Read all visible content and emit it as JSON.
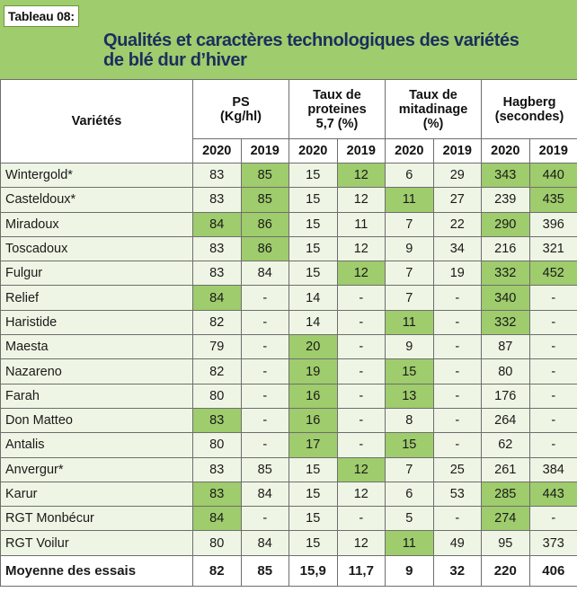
{
  "tag": "Tableau 08:",
  "title_line1": "Qualités et caractères technologiques des variétés",
  "title_line2": "de blé dur d’hiver",
  "headers": {
    "varietes": "Variétés",
    "ps": "PS\n(Kg/hl)",
    "proteines": "Taux de\nproteines\n5,7 (%)",
    "mitadinage": "Taux de\nmitadinage\n(%)",
    "hagberg": "Hagberg\n(secondes)",
    "years": [
      "2020",
      "2019",
      "2020",
      "2019",
      "2020",
      "2019",
      "2020",
      "2019"
    ]
  },
  "rows": [
    {
      "name": "Wintergold*",
      "values": [
        "83",
        "85",
        "15",
        "12",
        "6",
        "29",
        "343",
        "440"
      ],
      "highlight": [
        false,
        true,
        false,
        true,
        false,
        false,
        true,
        true
      ]
    },
    {
      "name": "Casteldoux*",
      "values": [
        "83",
        "85",
        "15",
        "12",
        "11",
        "27",
        "239",
        "435"
      ],
      "highlight": [
        false,
        true,
        false,
        false,
        true,
        false,
        false,
        true
      ]
    },
    {
      "name": "Miradoux",
      "values": [
        "84",
        "86",
        "15",
        "11",
        "7",
        "22",
        "290",
        "396"
      ],
      "highlight": [
        true,
        true,
        false,
        false,
        false,
        false,
        true,
        false
      ]
    },
    {
      "name": "Toscadoux",
      "values": [
        "83",
        "86",
        "15",
        "12",
        "9",
        "34",
        "216",
        "321"
      ],
      "highlight": [
        false,
        true,
        false,
        false,
        false,
        false,
        false,
        false
      ]
    },
    {
      "name": "Fulgur",
      "values": [
        "83",
        "84",
        "15",
        "12",
        "7",
        "19",
        "332",
        "452"
      ],
      "highlight": [
        false,
        false,
        false,
        true,
        false,
        false,
        true,
        true
      ]
    },
    {
      "name": "Relief",
      "values": [
        "84",
        "-",
        "14",
        "-",
        "7",
        "-",
        "340",
        "-"
      ],
      "highlight": [
        true,
        false,
        false,
        false,
        false,
        false,
        true,
        false
      ]
    },
    {
      "name": "Haristide",
      "values": [
        "82",
        "-",
        "14",
        "-",
        "11",
        "-",
        "332",
        "-"
      ],
      "highlight": [
        false,
        false,
        false,
        false,
        true,
        false,
        true,
        false
      ]
    },
    {
      "name": "Maesta",
      "values": [
        "79",
        "-",
        "20",
        "-",
        "9",
        "-",
        "87",
        "-"
      ],
      "highlight": [
        false,
        false,
        true,
        false,
        false,
        false,
        false,
        false
      ]
    },
    {
      "name": "Nazareno",
      "values": [
        "82",
        "-",
        "19",
        "-",
        "15",
        "-",
        "80",
        "-"
      ],
      "highlight": [
        false,
        false,
        true,
        false,
        true,
        false,
        false,
        false
      ]
    },
    {
      "name": "Farah",
      "values": [
        "80",
        "-",
        "16",
        "-",
        "13",
        "-",
        "176",
        "-"
      ],
      "highlight": [
        false,
        false,
        true,
        false,
        true,
        false,
        false,
        false
      ]
    },
    {
      "name": "Don Matteo",
      "values": [
        "83",
        "-",
        "16",
        "-",
        "8",
        "-",
        "264",
        "-"
      ],
      "highlight": [
        true,
        false,
        true,
        false,
        false,
        false,
        false,
        false
      ]
    },
    {
      "name": "Antalis",
      "values": [
        "80",
        "-",
        "17",
        "-",
        "15",
        "-",
        "62",
        "-"
      ],
      "highlight": [
        false,
        false,
        true,
        false,
        true,
        false,
        false,
        false
      ]
    },
    {
      "name": "Anvergur*",
      "values": [
        "83",
        "85",
        "15",
        "12",
        "7",
        "25",
        "261",
        "384"
      ],
      "highlight": [
        false,
        false,
        false,
        true,
        false,
        false,
        false,
        false
      ]
    },
    {
      "name": "Karur",
      "values": [
        "83",
        "84",
        "15",
        "12",
        "6",
        "53",
        "285",
        "443"
      ],
      "highlight": [
        true,
        false,
        false,
        false,
        false,
        false,
        true,
        true
      ]
    },
    {
      "name": "RGT Monbécur",
      "values": [
        "84",
        "-",
        "15",
        "-",
        "5",
        "-",
        "274",
        "-"
      ],
      "highlight": [
        true,
        false,
        false,
        false,
        false,
        false,
        true,
        false
      ]
    },
    {
      "name": "RGT Voilur",
      "values": [
        "80",
        "84",
        "15",
        "12",
        "11",
        "49",
        "95",
        "373"
      ],
      "highlight": [
        false,
        false,
        false,
        false,
        true,
        false,
        false,
        false
      ]
    }
  ],
  "footer": {
    "name": "Moyenne des essais",
    "values": [
      "82",
      "85",
      "15,9",
      "11,7",
      "9",
      "32",
      "220",
      "406"
    ]
  },
  "colors": {
    "band": "#9fcc6c",
    "highlight": "#9fcc6c",
    "row_bg": "#eef5e4",
    "title": "#1c2e5e"
  }
}
